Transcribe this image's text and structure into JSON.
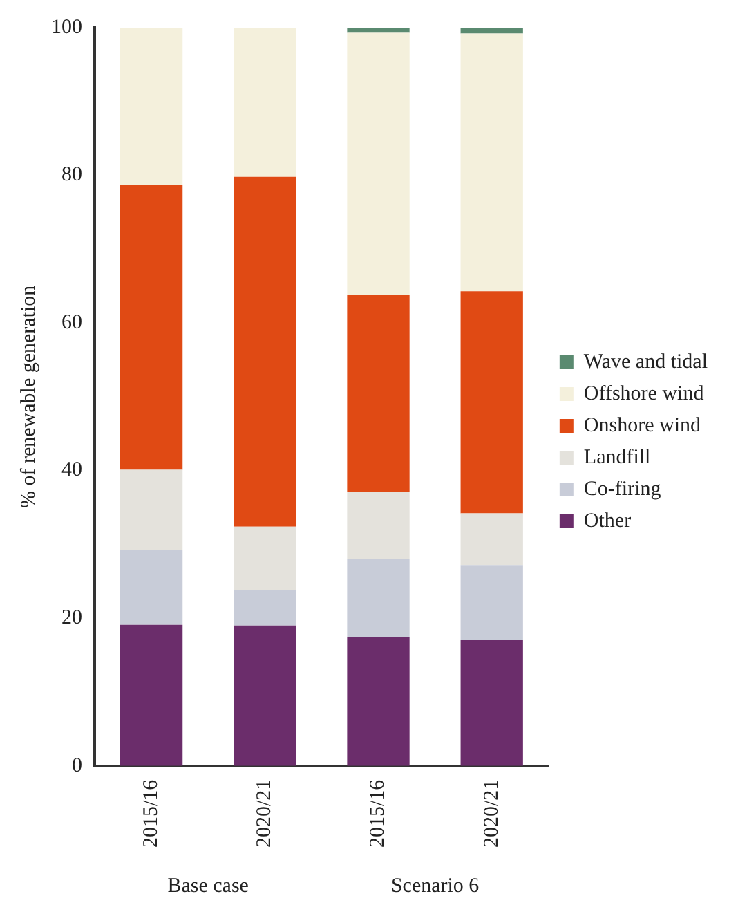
{
  "chart_data": {
    "type": "bar",
    "stacked": true,
    "ylabel": "% of renewable generation",
    "categories": [
      "2015/16",
      "2020/21",
      "2015/16",
      "2020/21"
    ],
    "series": [
      {
        "name": "Other",
        "color": "#6b2d6b",
        "values": [
          19.1,
          19.0,
          17.4,
          17.1
        ]
      },
      {
        "name": "Co-firing",
        "color": "#c8ccd8",
        "values": [
          10.1,
          4.8,
          10.6,
          10.1
        ]
      },
      {
        "name": "Landfill",
        "color": "#e4e2dc",
        "values": [
          10.9,
          8.6,
          9.1,
          7.0
        ]
      },
      {
        "name": "Onshore wind",
        "color": "#e04a14",
        "values": [
          38.6,
          47.4,
          26.7,
          30.1
        ]
      },
      {
        "name": "Offshore wind",
        "color": "#f4f0dc",
        "values": [
          21.3,
          20.2,
          35.5,
          34.9
        ]
      },
      {
        "name": "Wave and tidal",
        "color": "#5a8a70",
        "values": [
          0,
          0,
          0.7,
          0.8
        ]
      }
    ],
    "ylim": [
      0,
      100
    ],
    "yticks": [
      0,
      20,
      40,
      60,
      80,
      100
    ],
    "grid": false,
    "legend": "right",
    "annotations": [
      "Base case",
      "Scenario 6"
    ]
  }
}
